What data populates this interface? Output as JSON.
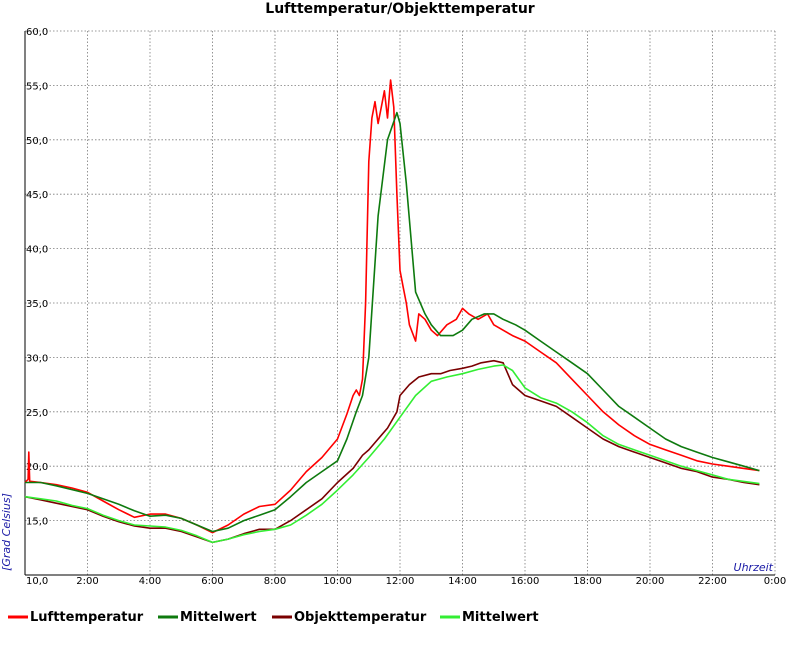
{
  "chart_data": {
    "type": "line",
    "title": "Lufttemperatur/Objekttemperatur",
    "xlabel": "Uhrzeit",
    "ylabel": "[Grad Celsius]",
    "xlim": [
      0,
      24
    ],
    "ylim": [
      10,
      60
    ],
    "grid": true,
    "legend_position": "bottom",
    "x_ticks": [
      "2:00",
      "4:00",
      "6:00",
      "8:00",
      "10:00",
      "12:00",
      "14:00",
      "16:00",
      "18:00",
      "20:00",
      "22:00",
      "0:00"
    ],
    "y_ticks": [
      "10,0",
      "15,0",
      "20,0",
      "25,0",
      "30,0",
      "35,0",
      "40,0",
      "45,0",
      "50,0",
      "55,0",
      "60,0"
    ],
    "series": [
      {
        "name": "Lufttemperatur",
        "color": "#ff0000",
        "x": [
          0,
          0.1,
          0.12,
          0.15,
          0.2,
          0.5,
          1.0,
          1.5,
          2.0,
          2.5,
          3.0,
          3.5,
          4.0,
          4.5,
          5.0,
          5.5,
          6.0,
          6.5,
          7.0,
          7.5,
          8.0,
          8.5,
          9.0,
          9.5,
          10.0,
          10.3,
          10.5,
          10.6,
          10.7,
          10.8,
          10.9,
          11.0,
          11.1,
          11.2,
          11.3,
          11.4,
          11.5,
          11.6,
          11.7,
          11.8,
          11.9,
          12.0,
          12.1,
          12.2,
          12.3,
          12.5,
          12.6,
          12.8,
          13.0,
          13.2,
          13.5,
          13.8,
          14.0,
          14.2,
          14.5,
          14.8,
          15.0,
          15.3,
          15.6,
          16.0,
          16.5,
          17.0,
          17.5,
          18.0,
          18.5,
          19.0,
          19.5,
          20.0,
          20.5,
          21.0,
          21.5,
          22.0,
          22.5,
          23.0,
          23.5
        ],
        "y": [
          18.5,
          18.8,
          21.3,
          18.6,
          18.6,
          18.5,
          18.3,
          18.0,
          17.6,
          16.8,
          16.0,
          15.3,
          15.6,
          15.6,
          15.2,
          14.6,
          13.9,
          14.6,
          15.6,
          16.3,
          16.5,
          17.8,
          19.5,
          20.8,
          22.5,
          24.8,
          26.5,
          27.0,
          26.5,
          28.0,
          35.0,
          48.0,
          52.0,
          53.5,
          51.5,
          53.0,
          54.5,
          52.0,
          55.5,
          53.0,
          45.0,
          38.0,
          36.5,
          35.0,
          33.0,
          31.5,
          34.0,
          33.5,
          32.5,
          32.0,
          33.0,
          33.5,
          34.5,
          34.0,
          33.5,
          34.0,
          33.0,
          32.5,
          32.0,
          31.5,
          30.5,
          29.5,
          28.0,
          26.5,
          25.0,
          23.8,
          22.8,
          22.0,
          21.5,
          21.0,
          20.5,
          20.2,
          20.0,
          19.8,
          19.6
        ]
      },
      {
        "name": "Mittelwert",
        "color": "#0e7a0e",
        "x": [
          0,
          0.5,
          1.0,
          2.0,
          3.0,
          3.5,
          4.0,
          4.5,
          5.0,
          5.5,
          6.0,
          6.5,
          7.0,
          7.5,
          8.0,
          8.5,
          9.0,
          9.5,
          10.0,
          10.3,
          10.6,
          10.8,
          11.0,
          11.3,
          11.6,
          11.9,
          12.0,
          12.2,
          12.5,
          12.8,
          13.0,
          13.3,
          13.7,
          14.0,
          14.3,
          14.7,
          15.0,
          15.3,
          15.7,
          16.0,
          16.5,
          17.0,
          17.5,
          18.0,
          18.5,
          19.0,
          19.5,
          20.0,
          20.5,
          21.0,
          21.5,
          22.0,
          22.5,
          23.0,
          23.5
        ],
        "y": [
          18.5,
          18.5,
          18.2,
          17.5,
          16.5,
          15.9,
          15.4,
          15.5,
          15.2,
          14.6,
          14.0,
          14.3,
          15.0,
          15.5,
          16.0,
          17.2,
          18.5,
          19.5,
          20.5,
          22.5,
          25.0,
          26.5,
          30.0,
          43.0,
          50.0,
          52.5,
          51.5,
          46.0,
          36.0,
          34.0,
          33.0,
          32.0,
          32.0,
          32.5,
          33.5,
          34.0,
          34.0,
          33.5,
          33.0,
          32.5,
          31.5,
          30.5,
          29.5,
          28.5,
          27.0,
          25.5,
          24.5,
          23.5,
          22.5,
          21.8,
          21.3,
          20.8,
          20.4,
          20.0,
          19.6
        ]
      },
      {
        "name": "Objekttemperatur",
        "color": "#7a0000",
        "x": [
          0,
          0.5,
          1.0,
          1.5,
          2.0,
          2.5,
          3.0,
          3.5,
          4.0,
          4.5,
          5.0,
          5.5,
          6.0,
          6.5,
          7.0,
          7.5,
          8.0,
          8.5,
          9.0,
          9.5,
          10.0,
          10.5,
          10.8,
          11.0,
          11.3,
          11.6,
          11.9,
          12.0,
          12.3,
          12.6,
          13.0,
          13.3,
          13.6,
          14.0,
          14.3,
          14.6,
          15.0,
          15.3,
          15.6,
          16.0,
          16.5,
          17.0,
          17.5,
          18.0,
          18.5,
          19.0,
          19.5,
          20.0,
          20.5,
          21.0,
          21.5,
          22.0,
          22.5,
          23.0,
          23.5
        ],
        "y": [
          17.2,
          16.9,
          16.6,
          16.3,
          16.0,
          15.4,
          14.9,
          14.5,
          14.3,
          14.3,
          14.0,
          13.5,
          13.0,
          13.3,
          13.8,
          14.2,
          14.2,
          15.0,
          16.0,
          17.0,
          18.5,
          19.8,
          21.0,
          21.5,
          22.5,
          23.5,
          25.0,
          26.5,
          27.5,
          28.2,
          28.5,
          28.5,
          28.8,
          29.0,
          29.2,
          29.5,
          29.7,
          29.5,
          27.5,
          26.5,
          26.0,
          25.5,
          24.5,
          23.5,
          22.5,
          21.8,
          21.3,
          20.8,
          20.3,
          19.8,
          19.5,
          19.0,
          18.8,
          18.5,
          18.3
        ]
      },
      {
        "name": "Mittelwert",
        "color": "#33ee33",
        "x": [
          0,
          0.5,
          1.0,
          1.5,
          2.0,
          2.5,
          3.0,
          3.5,
          4.0,
          4.5,
          5.0,
          5.5,
          6.0,
          6.5,
          7.0,
          7.5,
          8.0,
          8.5,
          9.0,
          9.5,
          10.0,
          10.5,
          11.0,
          11.5,
          12.0,
          12.5,
          13.0,
          13.5,
          14.0,
          14.5,
          15.0,
          15.3,
          15.6,
          16.0,
          16.5,
          17.0,
          17.5,
          18.0,
          18.5,
          19.0,
          19.5,
          20.0,
          20.5,
          21.0,
          21.5,
          22.0,
          22.5,
          23.0,
          23.5
        ],
        "y": [
          17.2,
          17.0,
          16.8,
          16.4,
          16.1,
          15.5,
          15.0,
          14.6,
          14.5,
          14.4,
          14.1,
          13.6,
          13.0,
          13.3,
          13.7,
          14.0,
          14.2,
          14.6,
          15.5,
          16.5,
          17.8,
          19.2,
          20.8,
          22.5,
          24.5,
          26.5,
          27.8,
          28.2,
          28.5,
          28.9,
          29.2,
          29.3,
          28.8,
          27.2,
          26.3,
          25.8,
          25.0,
          24.0,
          22.8,
          22.0,
          21.5,
          21.0,
          20.5,
          20.0,
          19.6,
          19.2,
          18.8,
          18.6,
          18.4
        ]
      }
    ]
  }
}
